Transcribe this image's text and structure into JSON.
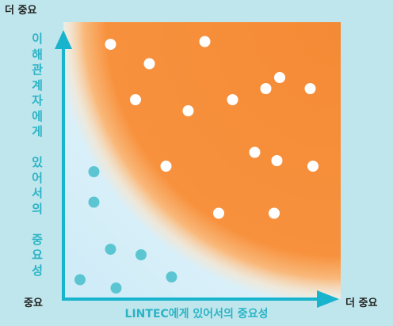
{
  "chart_data": {
    "type": "scatter",
    "title": "",
    "xlabel": "LINTEC에게 있어서의 중요성",
    "ylabel": "이해관계자에게 있어서의 중요성",
    "axis_labels": {
      "origin": "중요",
      "x_max": "더 중요",
      "y_max": "더 중요"
    },
    "xlim": [
      0,
      10
    ],
    "ylim": [
      0,
      10
    ],
    "grid": false,
    "colors": {
      "high_importance": "#f7913d",
      "low_importance": "#5bc6d2",
      "axis": "#18b3cc",
      "background": "#bfe6ec",
      "plot_background": "#e6f5fc"
    },
    "series": [
      {
        "values": [
          [
            1.7,
            9.2
          ],
          [
            3.1,
            8.5
          ],
          [
            5.1,
            9.3
          ],
          [
            7.8,
            8.0
          ],
          [
            8.9,
            7.6
          ],
          [
            2.6,
            7.2
          ],
          [
            4.5,
            6.8
          ],
          [
            6.1,
            7.2
          ],
          [
            7.3,
            7.6
          ],
          [
            6.9,
            5.3
          ],
          [
            7.7,
            5.0
          ],
          [
            9.0,
            4.8
          ],
          [
            3.7,
            4.8
          ],
          [
            5.6,
            3.1
          ],
          [
            7.6,
            3.1
          ]
        ]
      },
      {
        "values": [
          [
            1.1,
            4.6
          ],
          [
            1.1,
            3.5
          ],
          [
            1.7,
            1.8
          ],
          [
            2.8,
            1.6
          ],
          [
            0.6,
            0.7
          ],
          [
            1.9,
            0.4
          ],
          [
            3.9,
            0.8
          ]
        ]
      }
    ]
  }
}
